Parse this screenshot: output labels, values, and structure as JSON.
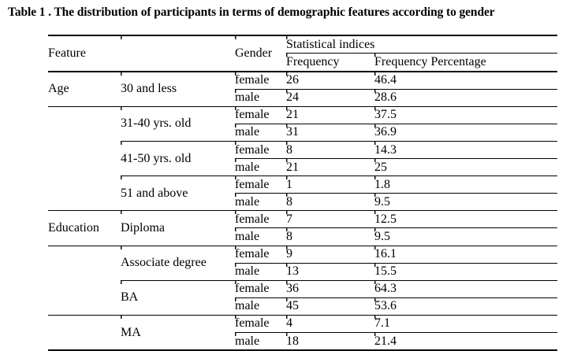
{
  "title": "Table 1 . The distribution of participants in terms of demographic features according to gender",
  "colors": {
    "text": "#000000",
    "background": "#ffffff",
    "rule": "#000000"
  },
  "table": {
    "headers": {
      "feature": "Feature",
      "gender": "Gender",
      "statistical_indices": "Statistical indices",
      "frequency": "Frequency",
      "frequency_percentage": "Frequency Percentage"
    },
    "feature_column": [
      {
        "label": "Age",
        "group_span": 1
      },
      {
        "label": "",
        "group_span": 3
      },
      {
        "label": "Education",
        "group_span": 1
      },
      {
        "label": "",
        "group_span": 2
      },
      {
        "label": "",
        "group_span": 1
      }
    ],
    "groups": [
      {
        "category": "30 and less",
        "rows": [
          {
            "gender": "female",
            "frequency": "26",
            "percentage": "46.4"
          },
          {
            "gender": "male",
            "frequency": "24",
            "percentage": "28.6"
          }
        ]
      },
      {
        "category": "31-40 yrs. old",
        "rows": [
          {
            "gender": "female",
            "frequency": "21",
            "percentage": "37.5"
          },
          {
            "gender": "male",
            "frequency": "31",
            "percentage": "36.9"
          }
        ]
      },
      {
        "category": "41-50 yrs. old",
        "rows": [
          {
            "gender": "female",
            "frequency": "8",
            "percentage": "14.3"
          },
          {
            "gender": "male",
            "frequency": "21",
            "percentage": "25"
          }
        ]
      },
      {
        "category": "51 and above",
        "rows": [
          {
            "gender": "female",
            "frequency": "1",
            "percentage": "1.8"
          },
          {
            "gender": "male",
            "frequency": "8",
            "percentage": "9.5"
          }
        ]
      },
      {
        "category": "Diploma",
        "rows": [
          {
            "gender": "female",
            "frequency": "7",
            "percentage": "12.5"
          },
          {
            "gender": "male",
            "frequency": "8",
            "percentage": "9.5"
          }
        ]
      },
      {
        "category": "Associate degree",
        "rows": [
          {
            "gender": "female",
            "frequency": "9",
            "percentage": "16.1"
          },
          {
            "gender": "male",
            "frequency": "13",
            "percentage": "15.5"
          }
        ]
      },
      {
        "category": "BA",
        "rows": [
          {
            "gender": "female",
            "frequency": "36",
            "percentage": "64.3"
          },
          {
            "gender": "male",
            "frequency": "45",
            "percentage": "53.6"
          }
        ]
      },
      {
        "category": "MA",
        "rows": [
          {
            "gender": "female",
            "frequency": "4",
            "percentage": "7.1"
          },
          {
            "gender": "male",
            "frequency": "18",
            "percentage": "21.4"
          }
        ]
      }
    ]
  }
}
